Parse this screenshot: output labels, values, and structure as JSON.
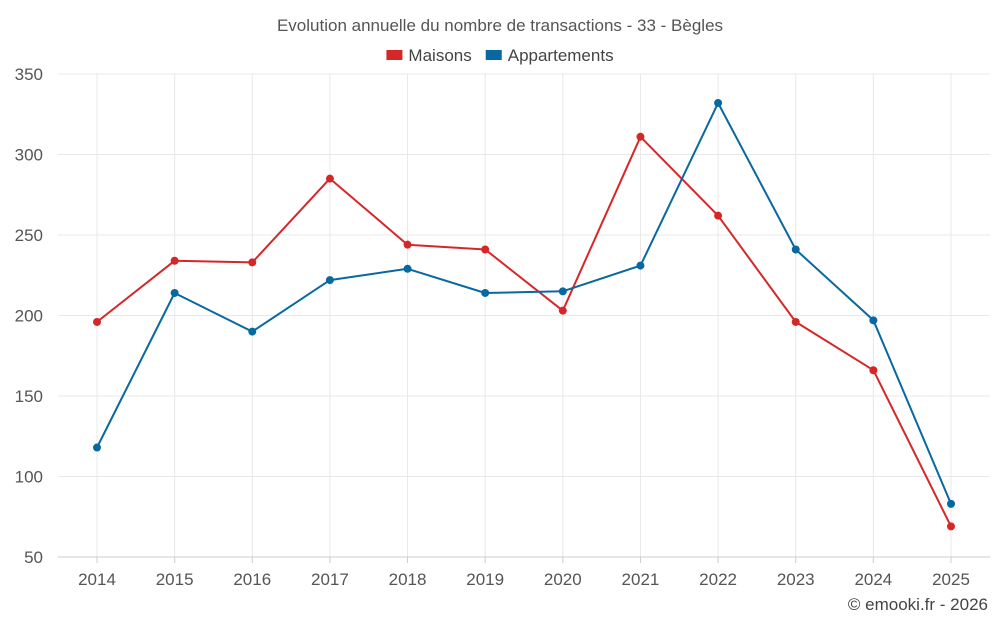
{
  "chart_data": {
    "type": "line",
    "title": "Evolution annuelle du nombre de transactions - 33 - Bègles",
    "categories": [
      "2014",
      "2015",
      "2016",
      "2017",
      "2018",
      "2019",
      "2020",
      "2021",
      "2022",
      "2023",
      "2024",
      "2025"
    ],
    "series": [
      {
        "name": "Maisons",
        "color": "#d62728",
        "values": [
          196,
          234,
          233,
          285,
          244,
          241,
          203,
          311,
          262,
          196,
          166,
          69
        ]
      },
      {
        "name": "Appartements",
        "color": "#0868a0",
        "values": [
          118,
          214,
          190,
          222,
          229,
          214,
          215,
          231,
          332,
          241,
          197,
          83
        ]
      }
    ],
    "ylim": [
      50,
      350
    ],
    "yticks": [
      50,
      100,
      150,
      200,
      250,
      300,
      350
    ],
    "xlabel": "",
    "ylabel": "",
    "grid": true,
    "legend": "top-center"
  },
  "credit": "© emooki.fr - 2026"
}
